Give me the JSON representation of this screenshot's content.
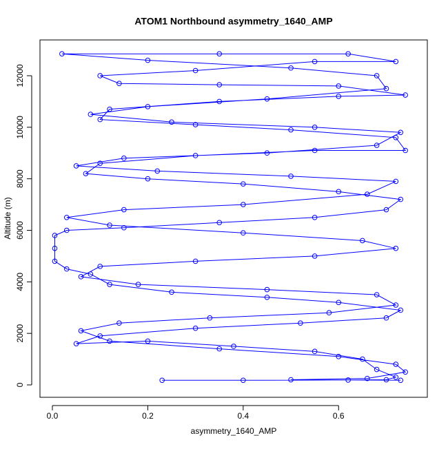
{
  "chart_data": {
    "type": "line",
    "title": "ATOM1 Northbound asymmetry_1640_AMP",
    "x_label": "asymmetry_1640_AMP",
    "y_label": "Altitude (m)",
    "color": "#0000ff",
    "markers": true,
    "xlim": [
      -0.026,
      0.786
    ],
    "ylim": [
      -481,
      13389
    ],
    "xticks": [
      {
        "value": 0,
        "label": "0.0"
      },
      0.2,
      0.4,
      0.6
    ],
    "yticks": [
      0,
      2000,
      4000,
      6000,
      8000,
      10000,
      12000
    ],
    "x": [
      0.23,
      0.4,
      0.62,
      0.7,
      0.72,
      0.68,
      0.65,
      0.55,
      0.38,
      0.2,
      0.05,
      0.1,
      0.3,
      0.52,
      0.7,
      0.73,
      0.6,
      0.45,
      0.25,
      0.12,
      0.08,
      0.03,
      0.005,
      0.005,
      0.005,
      0.03,
      0.15,
      0.35,
      0.55,
      0.7,
      0.73,
      0.6,
      0.4,
      0.2,
      0.07,
      0.1,
      0.3,
      0.55,
      0.74,
      0.72,
      0.5,
      0.3,
      0.1,
      0.12,
      0.35,
      0.6,
      0.74,
      0.6,
      0.35,
      0.14,
      0.1,
      0.3,
      0.55,
      0.72,
      0.62,
      0.35,
      0.02,
      0.2,
      0.5,
      0.68,
      0.7,
      0.45,
      0.2,
      0.08,
      0.25,
      0.55,
      0.73,
      0.68,
      0.45,
      0.15,
      0.05,
      0.22,
      0.5,
      0.72,
      0.66,
      0.4,
      0.15,
      0.03,
      0.12,
      0.4,
      0.65,
      0.72,
      0.55,
      0.3,
      0.1,
      0.06,
      0.18,
      0.45,
      0.68,
      0.72,
      0.58,
      0.33,
      0.14,
      0.06,
      0.12,
      0.35,
      0.6,
      0.72,
      0.74,
      0.66,
      0.5,
      0.73
    ],
    "y": [
      180,
      180,
      190,
      200,
      300,
      600,
      1000,
      1300,
      1500,
      1700,
      1600,
      1900,
      2200,
      2400,
      2600,
      2900,
      3200,
      3400,
      3600,
      3900,
      4300,
      4500,
      4800,
      5300,
      5800,
      6000,
      6100,
      6300,
      6500,
      6800,
      7200,
      7500,
      7800,
      8000,
      8200,
      8600,
      8900,
      9100,
      9100,
      9600,
      9900,
      10100,
      10300,
      10700,
      11000,
      11200,
      11250,
      11600,
      11650,
      11700,
      12000,
      12200,
      12550,
      12550,
      12850,
      12850,
      12850,
      12600,
      12300,
      12000,
      11500,
      11100,
      10800,
      10500,
      10200,
      10000,
      9800,
      9300,
      9000,
      8800,
      8500,
      8300,
      8100,
      7900,
      7400,
      7000,
      6800,
      6500,
      6200,
      5900,
      5600,
      5300,
      5000,
      4800,
      4600,
      4200,
      3900,
      3700,
      3500,
      3100,
      2800,
      2600,
      2400,
      2100,
      1700,
      1400,
      1100,
      800,
      500,
      250,
      200,
      180
    ]
  }
}
